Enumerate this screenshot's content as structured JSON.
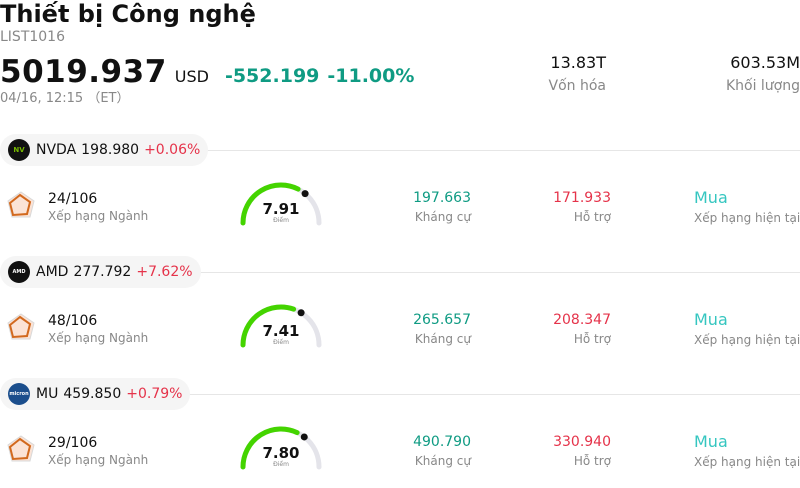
{
  "header": {
    "title": "Thiết bị Công nghệ",
    "code": "LIST1016",
    "price": "5019.937",
    "currency": "USD",
    "change": "-552.199",
    "change_pct": "-11.00%",
    "timestamp": "04/16, 12:15 （ET）",
    "market_cap_value": "13.83T",
    "market_cap_label": "Vốn hóa",
    "volume_value": "603.53M",
    "volume_label": "Khối lượng"
  },
  "colors": {
    "up": "#e5334a",
    "down_green": "#0f9b83",
    "gauge_active": "#44d400",
    "rating": "#35c6c0"
  },
  "stocks": [
    {
      "symbol": "NVDA",
      "price": "198.980",
      "change_pct": "+0.06%",
      "logo_text": "NV",
      "logo_icon": "nvidia-logo-icon",
      "rank_value": "24/106",
      "rank_label": "Xếp hạng Ngành",
      "score": "7.91",
      "score_value": 7.91,
      "score_label": "Điểm",
      "resistance_value": "197.663",
      "resistance_label": "Kháng cự",
      "support_value": "171.933",
      "support_label": "Hỗ trợ",
      "rating_value": "Mua",
      "rating_label": "Xếp hạng hiện tại"
    },
    {
      "symbol": "AMD",
      "price": "277.792",
      "change_pct": "+7.62%",
      "logo_text": "AMD",
      "logo_icon": "amd-logo-icon",
      "rank_value": "48/106",
      "rank_label": "Xếp hạng Ngành",
      "score": "7.41",
      "score_value": 7.41,
      "score_label": "Điểm",
      "resistance_value": "265.657",
      "resistance_label": "Kháng cự",
      "support_value": "208.347",
      "support_label": "Hỗ trợ",
      "rating_value": "Mua",
      "rating_label": "Xếp hạng hiện tại"
    },
    {
      "symbol": "MU",
      "price": "459.850",
      "change_pct": "+0.79%",
      "logo_text": "micron",
      "logo_icon": "micron-logo-icon",
      "rank_value": "29/106",
      "rank_label": "Xếp hạng Ngành",
      "score": "7.80",
      "score_value": 7.8,
      "score_label": "Điểm",
      "resistance_value": "490.790",
      "resistance_label": "Kháng cự",
      "support_value": "330.940",
      "support_label": "Hỗ trợ",
      "rating_value": "Mua",
      "rating_label": "Xếp hạng hiện tại"
    }
  ]
}
